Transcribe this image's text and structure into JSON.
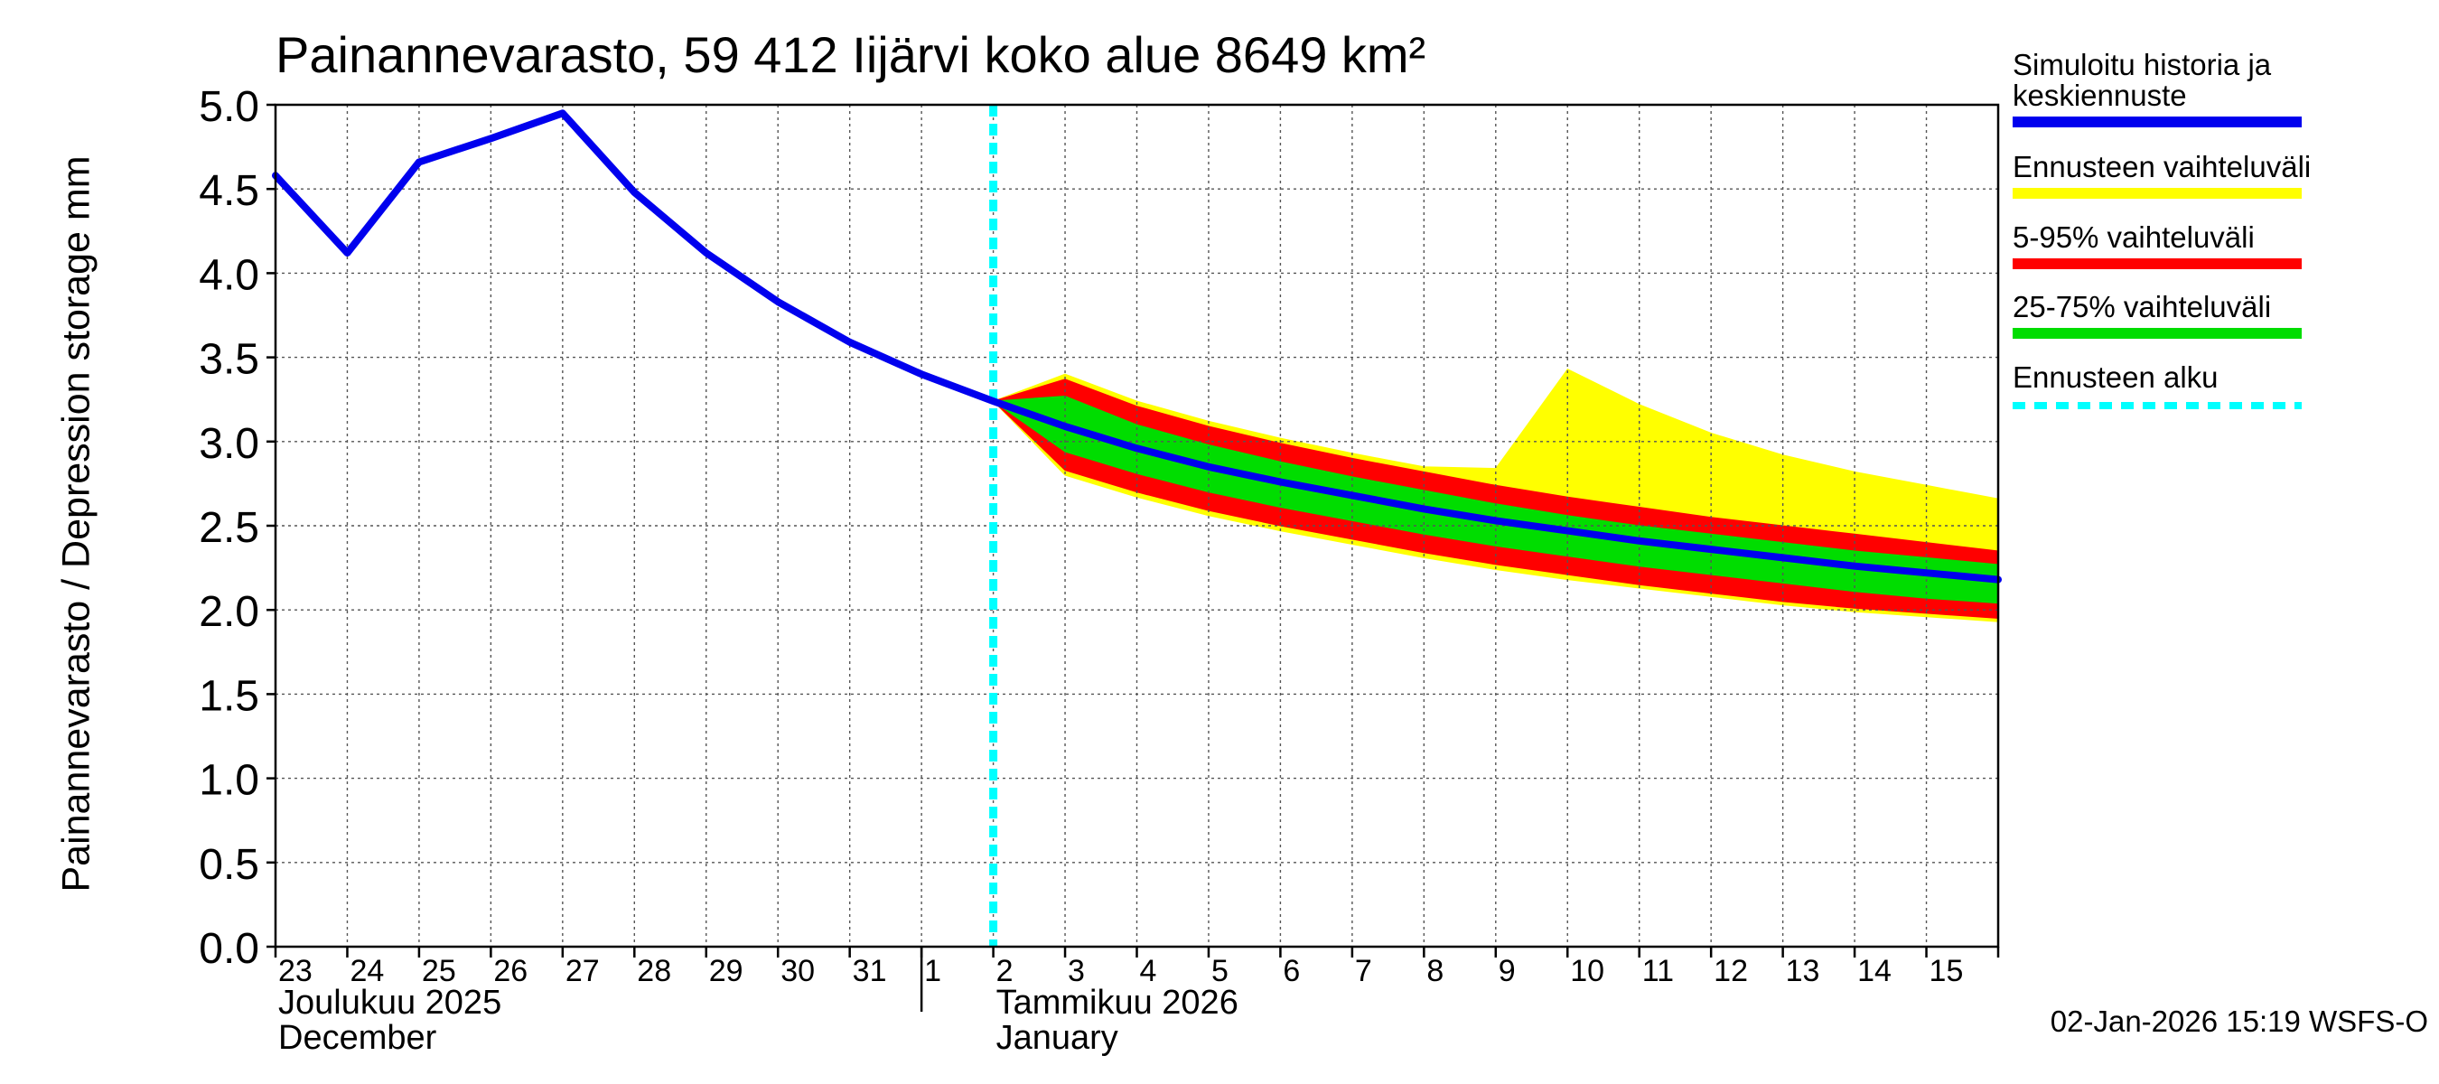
{
  "chart_data": {
    "type": "area",
    "title": "Painannevarasto, 59 412 Iijärvi koko alue 8649 km²",
    "ylabel": "Painannevarasto / Depression storage    mm",
    "ylim": [
      0.0,
      5.0
    ],
    "yticks": [
      "0.0",
      "0.5",
      "1.0",
      "1.5",
      "2.0",
      "2.5",
      "3.0",
      "3.5",
      "4.0",
      "4.5",
      "5.0"
    ],
    "xlim": [
      0,
      24
    ],
    "forecast_start_x": 10,
    "day_labels": [
      "23",
      "24",
      "25",
      "26",
      "27",
      "28",
      "29",
      "30",
      "31",
      "1",
      "2",
      "3",
      "4",
      "5",
      "6",
      "7",
      "8",
      "9",
      "10",
      "11",
      "12",
      "13",
      "14",
      "15"
    ],
    "month_labels": [
      {
        "x": 0,
        "fi": "Joulukuu  2025",
        "en": "December"
      },
      {
        "x": 10,
        "fi": "Tammikuu  2026",
        "en": "January"
      }
    ],
    "month_separator_x": 9,
    "series": [
      {
        "name": "Simuloitu historia ja keskiennuste",
        "x": [
          0,
          1,
          2,
          3,
          4,
          5,
          6,
          7,
          8,
          9,
          10,
          11,
          12,
          13,
          14,
          15,
          16,
          17,
          18,
          19,
          20,
          21,
          22,
          23,
          24
        ],
        "values": [
          4.58,
          4.12,
          4.66,
          4.8,
          4.95,
          4.48,
          4.12,
          3.83,
          3.59,
          3.4,
          3.24,
          3.09,
          2.96,
          2.85,
          2.76,
          2.68,
          2.6,
          2.53,
          2.47,
          2.41,
          2.36,
          2.31,
          2.26,
          2.22,
          2.18
        ]
      }
    ],
    "bands": {
      "x": [
        10,
        11,
        12,
        13,
        14,
        15,
        16,
        17,
        18,
        19,
        20,
        21,
        22,
        23,
        24
      ],
      "full": {
        "name": "Ennusteen vaihteluväli",
        "upper": [
          3.24,
          3.4,
          3.24,
          3.12,
          3.02,
          2.93,
          2.85,
          2.84,
          3.43,
          3.22,
          3.05,
          2.92,
          2.82,
          2.74,
          2.66
        ],
        "lower": [
          3.24,
          2.8,
          2.67,
          2.56,
          2.47,
          2.39,
          2.31,
          2.24,
          2.18,
          2.13,
          2.08,
          2.03,
          1.99,
          1.96,
          1.93
        ]
      },
      "p5_95": {
        "name": "5-95% vaihteluväli",
        "upper": [
          3.24,
          3.37,
          3.21,
          3.09,
          2.99,
          2.9,
          2.82,
          2.74,
          2.67,
          2.61,
          2.55,
          2.5,
          2.45,
          2.4,
          2.35
        ],
        "lower": [
          3.24,
          2.83,
          2.7,
          2.59,
          2.5,
          2.42,
          2.34,
          2.27,
          2.21,
          2.15,
          2.1,
          2.05,
          2.01,
          1.98,
          1.95
        ]
      },
      "p25_75": {
        "name": "25-75% vaihteluväli",
        "upper": [
          3.24,
          3.27,
          3.1,
          2.98,
          2.88,
          2.79,
          2.71,
          2.63,
          2.56,
          2.5,
          2.45,
          2.4,
          2.35,
          2.31,
          2.27
        ],
        "lower": [
          3.24,
          2.94,
          2.81,
          2.7,
          2.61,
          2.53,
          2.45,
          2.38,
          2.32,
          2.26,
          2.21,
          2.16,
          2.11,
          2.07,
          2.04
        ]
      }
    }
  },
  "colors": {
    "median": "#0000ee",
    "full_range": "#ffff00",
    "p5_95": "#ff0000",
    "p25_75": "#00dd00",
    "forecast_start": "#00ffff",
    "grid": "#555555"
  },
  "legend": [
    {
      "label": "Simuloitu historia ja keskiennuste",
      "color": "#0000ee",
      "style": "solid"
    },
    {
      "label": "Ennusteen vaihteluväli",
      "color": "#ffff00",
      "style": "solid"
    },
    {
      "label": "5-95% vaihteluväli",
      "color": "#ff0000",
      "style": "solid"
    },
    {
      "label": "25-75% vaihteluväli",
      "color": "#00dd00",
      "style": "solid"
    },
    {
      "label": "Ennusteen alku",
      "color": "#00ffff",
      "style": "dashed"
    }
  ],
  "footer": "02-Jan-2026 15:19 WSFS-O"
}
